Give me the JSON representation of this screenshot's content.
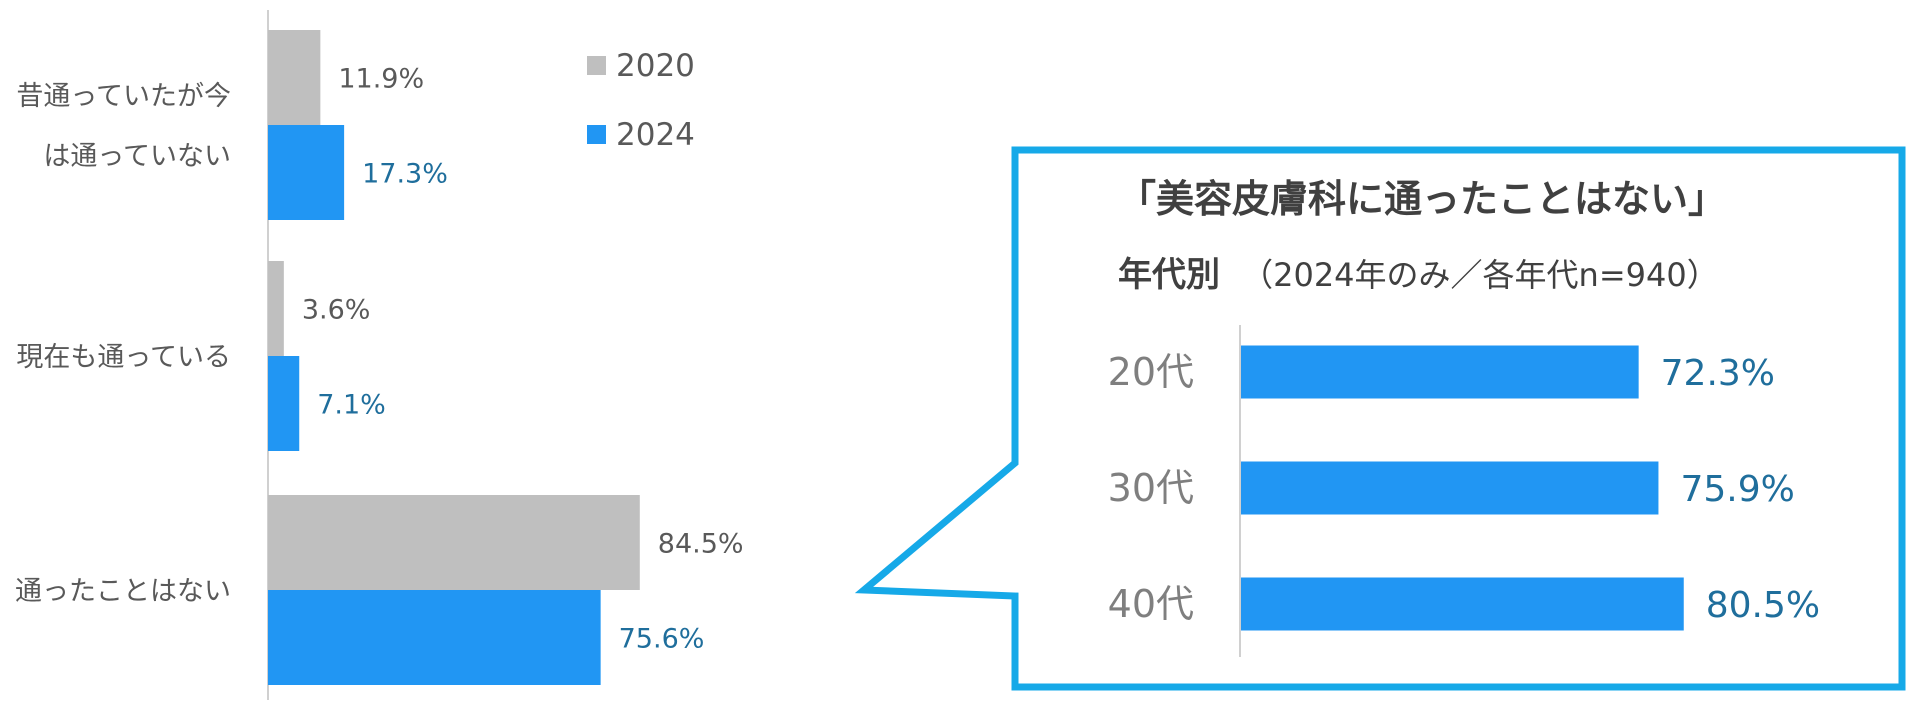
{
  "chart_data": [
    {
      "type": "bar",
      "orientation": "horizontal",
      "categories": [
        "昔通っていたが今は通っていない",
        "現在も通っている",
        "通ったことはない"
      ],
      "category_lines": [
        [
          "昔通っていたが今",
          "は通っていない"
        ],
        [
          "現在も通っている"
        ],
        [
          "通ったことはない"
        ]
      ],
      "series": [
        {
          "name": "2020",
          "values": [
            11.9,
            3.6,
            84.5
          ],
          "labels": [
            "11.9%",
            "3.6%",
            "84.5%"
          ],
          "color": "#BFBFBF"
        },
        {
          "name": "2024",
          "values": [
            17.3,
            7.1,
            75.6
          ],
          "labels": [
            "17.3%",
            "7.1%",
            "75.6%"
          ],
          "color": "#2196F3"
        }
      ],
      "xlim": [
        0,
        100
      ],
      "unit": "%",
      "grid": false,
      "legend": {
        "position": "top",
        "entries": [
          "2020",
          "2024"
        ]
      }
    },
    {
      "type": "bar",
      "orientation": "horizontal",
      "title": "「美容皮膚科に通ったことはない」",
      "subtitle_bold": "年代別",
      "subtitle": "（2024年のみ／各年代n=940）",
      "categories": [
        "20代",
        "30代",
        "40代"
      ],
      "series": [
        {
          "values": [
            72.3,
            75.9,
            80.5
          ],
          "labels": [
            "72.3%",
            "75.9%",
            "80.5%"
          ],
          "color": "#2196F3"
        }
      ],
      "grid": false
    }
  ],
  "colors": {
    "bar_2020": "#BFBFBF",
    "bar_2024": "#2196F3",
    "value_2024_text": "#1F6E9C",
    "callout_border": "#16A9E8",
    "axis": "#D0D0D0"
  }
}
